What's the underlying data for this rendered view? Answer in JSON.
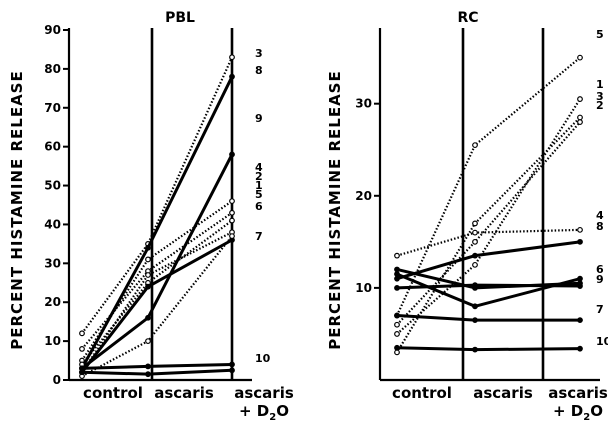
{
  "chart_data": [
    {
      "type": "line",
      "title": "PBL",
      "ylabel": "PERCENT HISTAMINE RELEASE",
      "categories": [
        "control",
        "ascaris",
        "ascaris + D2O"
      ],
      "category_labels": [
        "control",
        "ascaris",
        "ascaris"
      ],
      "category_sublabel": "+ D",
      "category_sublabel_sub": "2",
      "category_sublabel_end": "O",
      "ylim": [
        0,
        90
      ],
      "yticks": [
        0,
        10,
        20,
        30,
        40,
        50,
        60,
        70,
        80,
        90
      ],
      "series": [
        {
          "name": "3",
          "style": "dotted",
          "values": [
            12,
            35,
            83
          ]
        },
        {
          "name": "8",
          "style": "solid",
          "values": [
            3,
            34,
            78
          ]
        },
        {
          "name": "9",
          "style": "solid",
          "values": [
            3,
            16,
            58
          ]
        },
        {
          "name": "4",
          "style": "dotted",
          "values": [
            5,
            31,
            46
          ]
        },
        {
          "name": "2",
          "style": "dotted",
          "values": [
            8,
            28,
            43
          ]
        },
        {
          "name": "1",
          "style": "dotted",
          "values": [
            4,
            25,
            41
          ]
        },
        {
          "name": "5",
          "style": "dotted",
          "values": [
            2,
            27,
            38
          ]
        },
        {
          "name": "6",
          "style": "solid",
          "values": [
            2,
            24,
            36
          ]
        },
        {
          "name": "7",
          "style": "dotted",
          "values": [
            1,
            10,
            37
          ]
        },
        {
          "name": "10",
          "style": "solid",
          "values": [
            3,
            3.5,
            4
          ]
        },
        {
          "name": "",
          "style": "solid",
          "values": [
            2,
            1.5,
            2.5
          ]
        }
      ]
    },
    {
      "type": "line",
      "title": "RC",
      "ylabel": "PERCENT HISTAMINE RELEASE",
      "categories": [
        "control",
        "ascaris",
        "ascaris + D2O"
      ],
      "category_labels": [
        "control",
        "ascaris",
        "ascaris"
      ],
      "category_sublabel": "+ D",
      "category_sublabel_sub": "2",
      "category_sublabel_end": "O",
      "ylim": [
        0,
        38
      ],
      "yticks": [
        10,
        20,
        30
      ],
      "series": [
        {
          "name": "5",
          "style": "dotted",
          "values": [
            7,
            25.5,
            35
          ]
        },
        {
          "name": "1",
          "style": "dotted",
          "values": [
            5,
            12.5,
            30.5
          ]
        },
        {
          "name": "3",
          "style": "dotted",
          "values": [
            3,
            17,
            28.5
          ]
        },
        {
          "name": "2",
          "style": "dotted",
          "values": [
            6,
            15,
            28
          ]
        },
        {
          "name": "4",
          "style": "dotted",
          "values": [
            13.5,
            16,
            16.3
          ]
        },
        {
          "name": "8",
          "style": "solid",
          "values": [
            11,
            13.5,
            15
          ]
        },
        {
          "name": "6",
          "style": "solid",
          "values": [
            11.5,
            8,
            11
          ]
        },
        {
          "name": "9",
          "style": "solid",
          "values": [
            12,
            10,
            10.5
          ]
        },
        {
          "name": "",
          "style": "solid",
          "values": [
            10,
            10.3,
            10.2
          ]
        },
        {
          "name": "7",
          "style": "solid",
          "values": [
            7,
            6.5,
            6.5
          ]
        },
        {
          "name": "10",
          "style": "solid",
          "values": [
            3.5,
            3.3,
            3.4
          ]
        }
      ]
    }
  ]
}
